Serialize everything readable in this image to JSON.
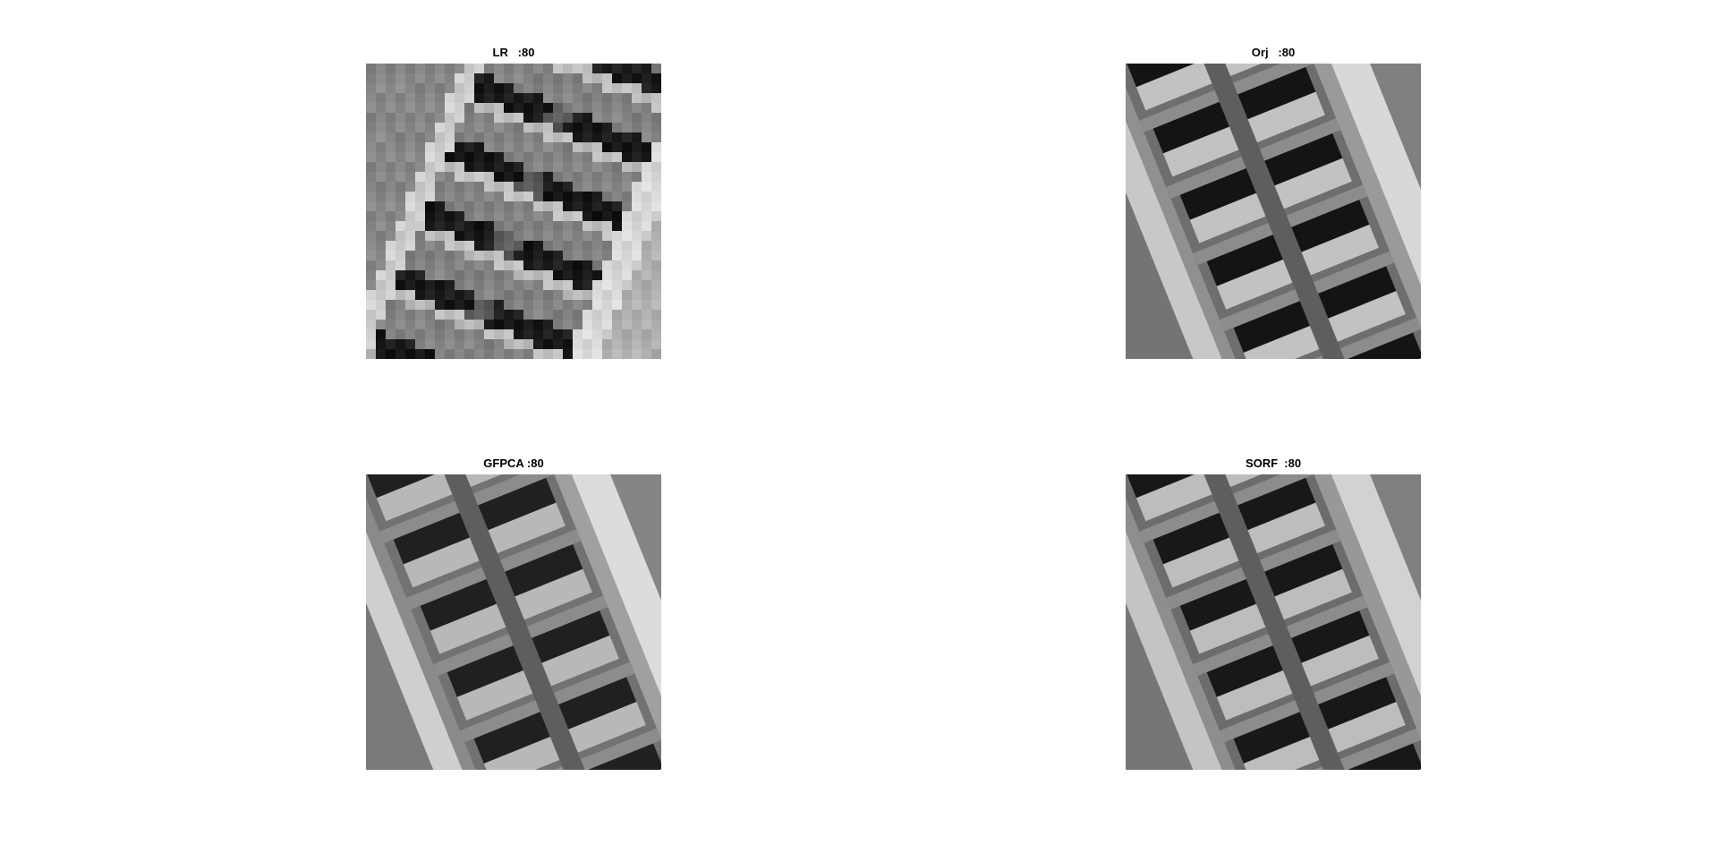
{
  "panels": [
    {
      "id": "lr",
      "title": "LR   :80"
    },
    {
      "id": "orj",
      "title": "Orj   :80"
    },
    {
      "id": "gfpca",
      "title": "GFPCA :80"
    },
    {
      "id": "sorf",
      "title": "SORF  :80"
    }
  ]
}
